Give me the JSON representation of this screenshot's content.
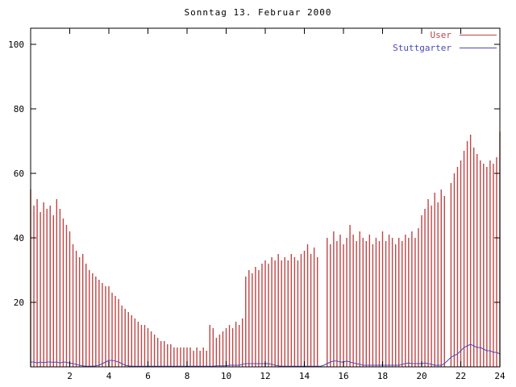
{
  "chart_data": {
    "type": "bar",
    "title": "Sonntag 13. Februar 2000",
    "xlabel": "",
    "ylabel": "",
    "xlim": [
      0,
      24
    ],
    "ylim": [
      0,
      105
    ],
    "x_ticks": [
      2,
      4,
      6,
      8,
      10,
      12,
      14,
      16,
      18,
      20,
      22,
      24
    ],
    "y_ticks": [
      20,
      40,
      60,
      80,
      100
    ],
    "grid": false,
    "legend_position": "top-right",
    "x_unit": "hour_of_day",
    "sample_interval_minutes": 10,
    "series": [
      {
        "name": "User",
        "type": "impulse",
        "color": "#c04545",
        "values": [
          55,
          50,
          52,
          48,
          51,
          49,
          50,
          47,
          52,
          49,
          46,
          44,
          42,
          38,
          36,
          34,
          35,
          32,
          30,
          29,
          28,
          27,
          26,
          25,
          25,
          23,
          22,
          21,
          19,
          18,
          17,
          16,
          15,
          14,
          13,
          13,
          12,
          11,
          10,
          9,
          8,
          8,
          7,
          7,
          6,
          6,
          6,
          6,
          6,
          6,
          5,
          6,
          5,
          6,
          5,
          13,
          12,
          9,
          10,
          11,
          12,
          13,
          12,
          14,
          13,
          15,
          28,
          30,
          29,
          31,
          30,
          32,
          33,
          32,
          34,
          33,
          35,
          33,
          34,
          33,
          35,
          34,
          33,
          35,
          36,
          38,
          35,
          37,
          34,
          0,
          0,
          40,
          38,
          42,
          39,
          41,
          38,
          40,
          44,
          41,
          39,
          42,
          40,
          39,
          41,
          38,
          40,
          39,
          42,
          39,
          41,
          40,
          38,
          40,
          39,
          41,
          40,
          42,
          40,
          43,
          47,
          49,
          52,
          50,
          54,
          51,
          55,
          53,
          0,
          57,
          60,
          62,
          64,
          67,
          70,
          72,
          68,
          66,
          64,
          63,
          62,
          64,
          63,
          65,
          73
        ]
      },
      {
        "name": "Stuttgarter",
        "type": "line",
        "color": "#4848c0",
        "values": [
          1.5,
          1.5,
          1.2,
          1.5,
          1.3,
          1.5,
          1.5,
          1.4,
          1.5,
          1.2,
          1.5,
          1.4,
          1.2,
          1.0,
          0.8,
          0.5,
          0.3,
          0.2,
          0.2,
          0.2,
          0.3,
          0.5,
          1.0,
          1.5,
          2.0,
          2.0,
          1.8,
          1.5,
          1.0,
          0.5,
          0.3,
          0.2,
          0.2,
          0.2,
          0.2,
          0.2,
          0.2,
          0.2,
          0.2,
          0.2,
          0.2,
          0.2,
          0.2,
          0.2,
          0.2,
          0.2,
          0.2,
          0.2,
          0.2,
          0.2,
          0.2,
          0.2,
          0.2,
          0.2,
          0.2,
          0.2,
          0.2,
          0.3,
          0.3,
          0.3,
          0.3,
          0.5,
          0.5,
          0.5,
          0.5,
          0.8,
          1.0,
          1.0,
          1.0,
          1.0,
          1.0,
          1.0,
          1.0,
          1.0,
          0.8,
          0.5,
          0.3,
          0.2,
          0.2,
          0.2,
          0.2,
          0.2,
          0.2,
          0.2,
          0.2,
          0.2,
          0.2,
          0.2,
          0.2,
          0.2,
          0.5,
          1.0,
          1.5,
          1.8,
          1.8,
          1.5,
          1.5,
          1.8,
          1.5,
          1.2,
          1.0,
          0.8,
          0.5,
          0.5,
          0.5,
          0.5,
          0.5,
          0.5,
          0.5,
          0.5,
          0.5,
          0.5,
          0.5,
          0.5,
          0.8,
          1.0,
          1.2,
          1.0,
          1.0,
          1.0,
          1.0,
          1.2,
          1.0,
          0.8,
          0.5,
          0.5,
          0.5,
          1.0,
          2.0,
          3.0,
          3.5,
          4.0,
          5.0,
          6.0,
          6.5,
          7.0,
          6.5,
          6.0,
          6.0,
          5.5,
          5.0,
          5.0,
          4.5,
          4.5,
          4.0
        ]
      }
    ]
  }
}
